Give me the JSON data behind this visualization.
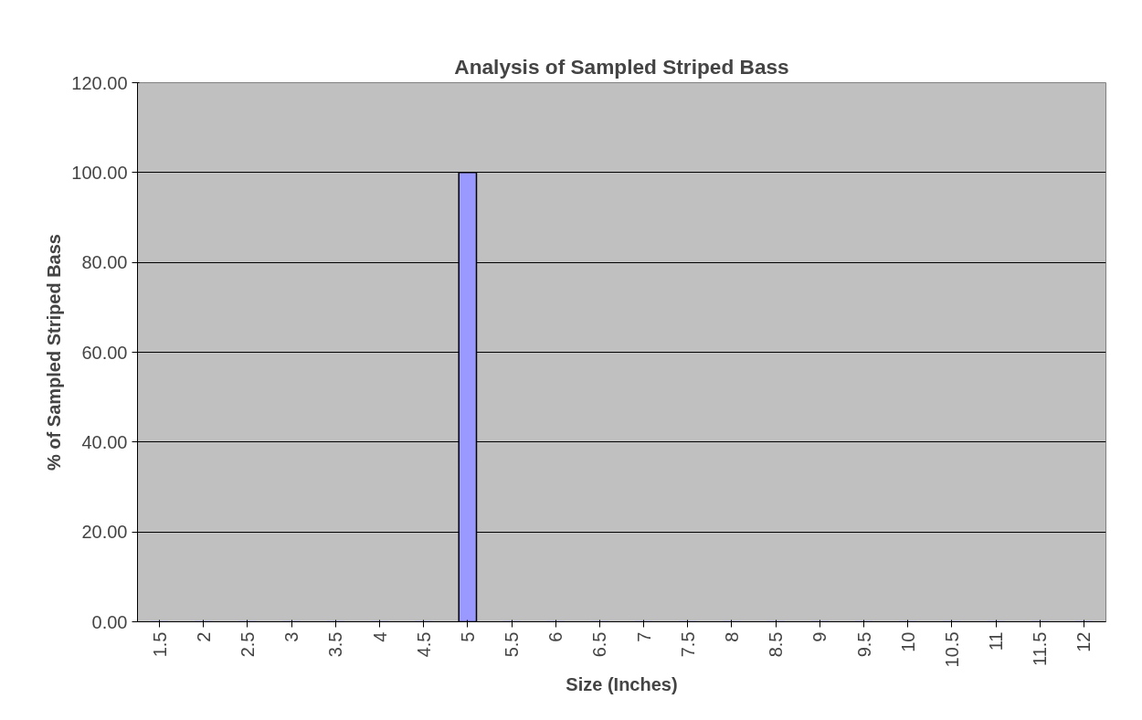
{
  "chart_data": {
    "type": "bar",
    "title": "Analysis of Sampled Striped Bass",
    "xlabel": "Size (Inches)",
    "ylabel": "% of Sampled Striped Bass",
    "categories": [
      "1.5",
      "2",
      "2.5",
      "3",
      "3.5",
      "4",
      "4.5",
      "5",
      "5.5",
      "6",
      "6.5",
      "7",
      "7.5",
      "8",
      "8.5",
      "9",
      "9.5",
      "10",
      "10.5",
      "11",
      "11.5",
      "12"
    ],
    "series": [
      {
        "color": "#9999ff",
        "values": [
          0,
          0,
          0,
          0,
          0,
          0,
          0,
          100,
          0,
          0,
          0,
          0,
          0,
          0,
          0,
          0,
          0,
          0,
          0,
          0,
          0,
          0
        ]
      }
    ],
    "ylim": [
      0,
      120
    ],
    "yticks": [
      {
        "value": 0,
        "label": "0.00"
      },
      {
        "value": 20,
        "label": "20.00"
      },
      {
        "value": 40,
        "label": "40.00"
      },
      {
        "value": 60,
        "label": "60.00"
      },
      {
        "value": 80,
        "label": "80.00"
      },
      {
        "value": 100,
        "label": "100.00"
      },
      {
        "value": 120,
        "label": "120.00"
      }
    ],
    "grid": "y"
  }
}
